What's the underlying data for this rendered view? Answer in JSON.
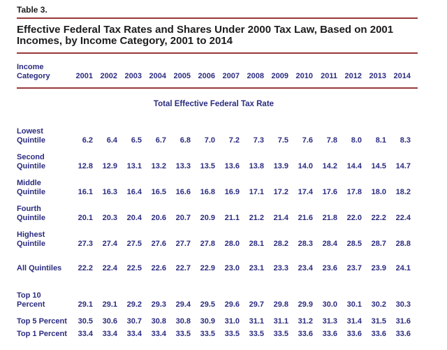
{
  "page": {
    "table_label": "Table 3.",
    "title": "Effective Federal Tax Rates and Shares Under 2000 Tax Law, Based on 2001 Incomes, by Income Category, 2001 to 2014"
  },
  "colors": {
    "rule": "#993939",
    "heading_text": "#1c1c1c",
    "table_text": "#2b2b80"
  },
  "table": {
    "header": {
      "label_lines": [
        "Income",
        "Category"
      ],
      "years": [
        "2001",
        "2002",
        "2003",
        "2004",
        "2005",
        "2006",
        "2007",
        "2008",
        "2009",
        "2010",
        "2011",
        "2012",
        "2013",
        "2014"
      ]
    },
    "section_title": "Total Effective Federal Tax Rate",
    "rows": [
      {
        "label_lines": [
          "Lowest",
          "Quintile"
        ],
        "gap": "first",
        "values": [
          "6.2",
          "6.4",
          "6.5",
          "6.7",
          "6.8",
          "7.0",
          "7.2",
          "7.3",
          "7.5",
          "7.6",
          "7.8",
          "8.0",
          "8.1",
          "8.3"
        ]
      },
      {
        "label_lines": [
          "Second",
          "Quintile"
        ],
        "gap": "normal",
        "values": [
          "12.8",
          "12.9",
          "13.1",
          "13.2",
          "13.3",
          "13.5",
          "13.6",
          "13.8",
          "13.9",
          "14.0",
          "14.2",
          "14.4",
          "14.5",
          "14.7"
        ]
      },
      {
        "label_lines": [
          "Middle",
          "Quintile"
        ],
        "gap": "normal",
        "values": [
          "16.1",
          "16.3",
          "16.4",
          "16.5",
          "16.6",
          "16.8",
          "16.9",
          "17.1",
          "17.2",
          "17.4",
          "17.6",
          "17.8",
          "18.0",
          "18.2"
        ]
      },
      {
        "label_lines": [
          "Fourth",
          "Quintile"
        ],
        "gap": "normal",
        "values": [
          "20.1",
          "20.3",
          "20.4",
          "20.6",
          "20.7",
          "20.9",
          "21.1",
          "21.2",
          "21.4",
          "21.6",
          "21.8",
          "22.0",
          "22.2",
          "22.4"
        ]
      },
      {
        "label_lines": [
          "Highest",
          "Quintile"
        ],
        "gap": "normal",
        "values": [
          "27.3",
          "27.4",
          "27.5",
          "27.6",
          "27.7",
          "27.8",
          "28.0",
          "28.1",
          "28.2",
          "28.3",
          "28.4",
          "28.5",
          "28.7",
          "28.8"
        ]
      },
      {
        "label_lines": [
          "All Quintiles"
        ],
        "gap": "large",
        "values": [
          "22.2",
          "22.4",
          "22.5",
          "22.6",
          "22.7",
          "22.9",
          "23.0",
          "23.1",
          "23.3",
          "23.4",
          "23.6",
          "23.7",
          "23.9",
          "24.1"
        ]
      },
      {
        "label_lines": [
          "Top 10",
          "Percent"
        ],
        "gap": "xlarge",
        "values": [
          "29.1",
          "29.1",
          "29.2",
          "29.3",
          "29.4",
          "29.5",
          "29.6",
          "29.7",
          "29.8",
          "29.9",
          "30.0",
          "30.1",
          "30.2",
          "30.3"
        ]
      },
      {
        "label_lines": [
          "Top 5 Percent"
        ],
        "gap": "normal",
        "values": [
          "30.5",
          "30.6",
          "30.7",
          "30.8",
          "30.8",
          "30.9",
          "31.0",
          "31.1",
          "31.1",
          "31.2",
          "31.3",
          "31.4",
          "31.5",
          "31.6"
        ]
      },
      {
        "label_lines": [
          "Top 1 Percent"
        ],
        "gap": "small",
        "values": [
          "33.4",
          "33.4",
          "33.4",
          "33.4",
          "33.5",
          "33.5",
          "33.5",
          "33.5",
          "33.5",
          "33.6",
          "33.6",
          "33.6",
          "33.6",
          "33.6"
        ]
      }
    ]
  }
}
